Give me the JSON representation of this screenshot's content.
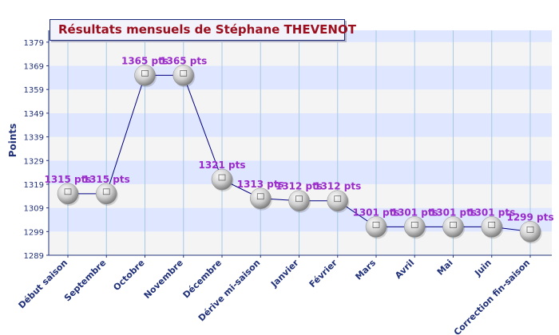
{
  "chart_data": {
    "type": "line",
    "title": "Résultats mensuels de Stéphane THEVENOT",
    "xlabel": "",
    "ylabel": "Points",
    "ylim": [
      1289,
      1384
    ],
    "yticks": [
      1289,
      1299,
      1309,
      1319,
      1329,
      1339,
      1349,
      1359,
      1369,
      1379
    ],
    "grid": true,
    "categories": [
      "Début saison",
      "Septembre",
      "Octobre",
      "Novembre",
      "Décembre",
      "Dérive mi-saison",
      "Janvier",
      "Février",
      "Mars",
      "Avril",
      "Mai",
      "Juin",
      "Correction fin-saison"
    ],
    "series": [
      {
        "values": [
          1315,
          1315,
          1365,
          1365,
          1321,
          1313,
          1312,
          1312,
          1301,
          1301,
          1301,
          1301,
          1299
        ],
        "labels": [
          "1315 pts",
          "1315 pts",
          "1365 pts",
          "1365 pts",
          "1321 pts",
          "1313 pts",
          "1312 pts",
          "1312 pts",
          "1301 pts",
          "1301 pts",
          "1301 pts",
          "1301 pts",
          "1299 pts"
        ]
      }
    ],
    "colors": {
      "band_blue": "#dfe6ff",
      "band_grey": "#f4f4f4",
      "line": "#000080",
      "label": "#9a2bcb",
      "axis_text": "#22327a",
      "title": "#9c0f1e"
    }
  }
}
